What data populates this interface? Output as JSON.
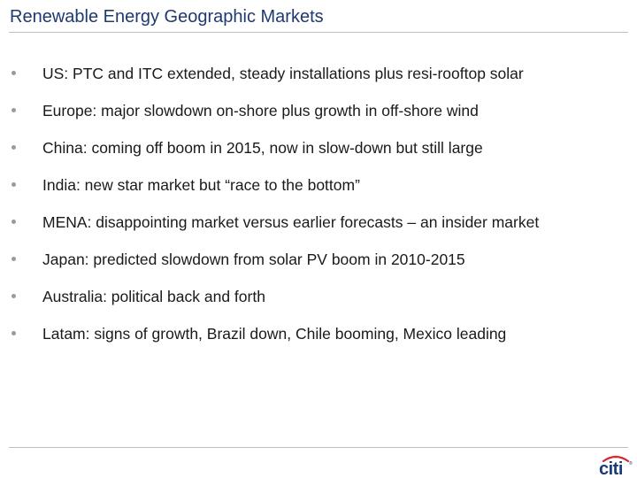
{
  "slide": {
    "title": "Renewable Energy Geographic Markets",
    "bullets": [
      "US: PTC and ITC extended, steady installations plus resi-rooftop solar",
      "Europe:  major slowdown on-shore plus growth in off-shore wind",
      "China:  coming off boom in 2015, now in slow-down but still large",
      "India:  new star market but “race to the bottom”",
      "MENA: disappointing market versus earlier forecasts – an insider market",
      "Japan: predicted slowdown from solar PV boom in 2010-2015",
      "Australia: political back and forth",
      "Latam:  signs of growth, Brazil down, Chile booming, Mexico leading"
    ]
  },
  "footer": {
    "logo_text": "citi",
    "logo_mark": "®"
  },
  "colors": {
    "title": "#1f3a6e",
    "logo_text": "#1a3c7a",
    "logo_arc": "#d7262e",
    "bullet": "#9a9a9a",
    "rule": "#bfbfbf"
  }
}
